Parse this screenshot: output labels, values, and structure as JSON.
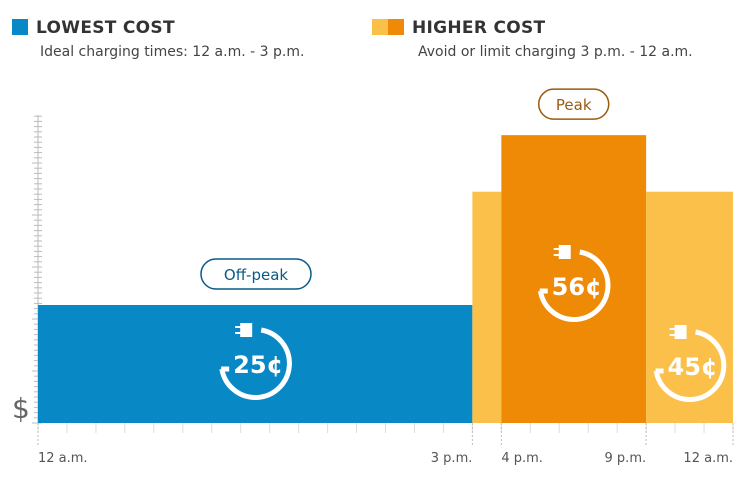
{
  "legend": [
    {
      "title": "LOWEST COST",
      "subtitle": "Ideal charging times: 12 a.m. - 3 p.m.",
      "colors": [
        "#0889c6"
      ]
    },
    {
      "title": "HIGHER COST",
      "subtitle": "Avoid or limit charging 3 p.m. - 12 a.m.",
      "colors": [
        "#fbc04a",
        "#ee8a05"
      ]
    }
  ],
  "chart_data": {
    "type": "bar",
    "ylabel": "$",
    "x_ticks": [
      {
        "hour": 0,
        "label": "12 a.m."
      },
      {
        "hour": 15,
        "label": "3 p.m."
      },
      {
        "hour": 16,
        "label": "4 p.m."
      },
      {
        "hour": 21,
        "label": "9 p.m."
      },
      {
        "hour": 24,
        "label": "12 a.m."
      }
    ],
    "bars": [
      {
        "start": 0,
        "end": 15,
        "value": 25,
        "label": "25¢",
        "color": "#0889c6",
        "period": "Off-peak",
        "period_color": "#0a5a86",
        "icon": "plug-cycle-icon"
      },
      {
        "start": 15,
        "end": 16,
        "value": 45,
        "label": "",
        "color": "#fbc04a"
      },
      {
        "start": 16,
        "end": 21,
        "value": 56,
        "label": "56¢",
        "color": "#ee8a05",
        "period": "Peak",
        "period_color": "#9a5a10",
        "icon": "plug-cycle-icon"
      },
      {
        "start": 21,
        "end": 24,
        "value": 45,
        "label": "45¢",
        "color": "#fbc04a",
        "icon": "plug-cycle-icon"
      }
    ]
  }
}
